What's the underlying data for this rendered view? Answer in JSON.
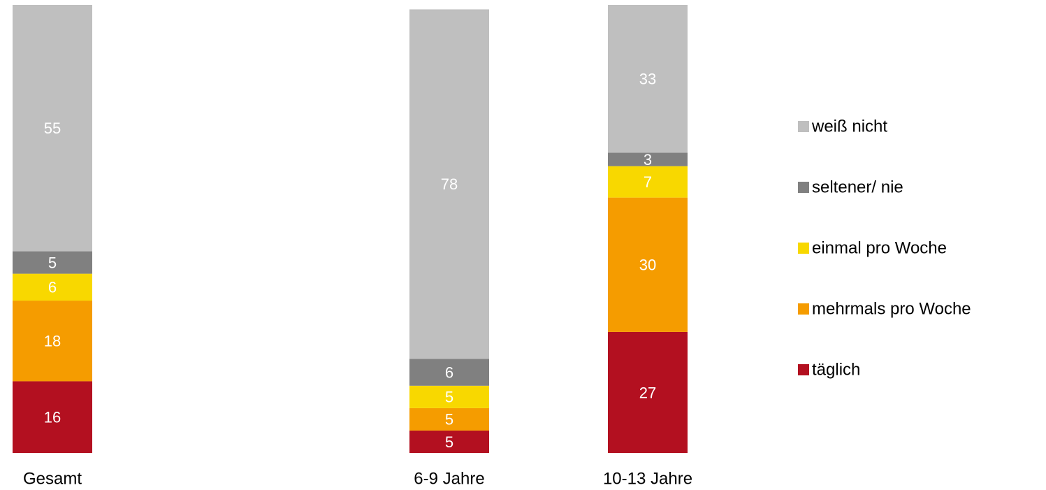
{
  "chart_data": {
    "type": "stacked_bar",
    "categories": [
      "Gesamt",
      null,
      "6-9 Jahre",
      "10-13 Jahre"
    ],
    "series": [
      {
        "name": "täglich",
        "color": "#b31020",
        "values": [
          16,
          null,
          5,
          27
        ]
      },
      {
        "name": "mehrmals pro Woche",
        "color": "#f59c00",
        "values": [
          18,
          null,
          5,
          30
        ]
      },
      {
        "name": "einmal pro Woche",
        "color": "#f8d800",
        "values": [
          6,
          null,
          5,
          7
        ]
      },
      {
        "name": "seltener/ nie",
        "color": "#808080",
        "values": [
          5,
          null,
          6,
          3
        ]
      },
      {
        "name": "weiß nicht",
        "color": "#bfbfbf",
        "values": [
          55,
          null,
          78,
          33
        ]
      }
    ],
    "ylim": [
      0,
      100
    ],
    "legend": "right"
  }
}
